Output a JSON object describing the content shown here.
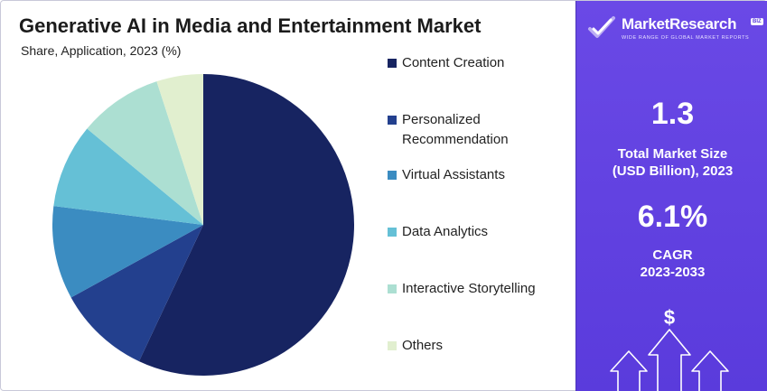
{
  "chart_data": {
    "type": "pie",
    "title": "Generative AI in Media and Entertainment Market",
    "subtitle": "Share, Application, 2023 (%)",
    "categories": [
      "Content Creation",
      "Personalized Recommendation",
      "Virtual Assistants",
      "Data Analytics",
      "Interactive Storytelling",
      "Others"
    ],
    "values": [
      57,
      10,
      10,
      9,
      9,
      5
    ],
    "colors": [
      "#172461",
      "#23408e",
      "#3b8cc1",
      "#65c0d6",
      "#acdfd2",
      "#e1efcf"
    ],
    "start_angle_deg": 0,
    "direction": "clockwise",
    "legend_position": "right"
  },
  "legend": {
    "items": [
      "Content Creation",
      "Personalized Recommendation",
      "Virtual Assistants",
      "Data Analytics",
      "Interactive Storytelling",
      "Others"
    ]
  },
  "sidebar": {
    "brand_name": "MarketResearch",
    "brand_badge": "BIZ",
    "brand_tagline": "WIDE RANGE OF GLOBAL MARKET REPORTS",
    "market_size_value": "1.3",
    "market_size_label_line1": "Total Market Size",
    "market_size_label_line2": "(USD Billion), 2023",
    "cagr_value": "6.1%",
    "cagr_label_line1": "CAGR",
    "cagr_label_line2": "2023-2033",
    "dollar_symbol": "$",
    "background_color": "#5f42e0"
  }
}
